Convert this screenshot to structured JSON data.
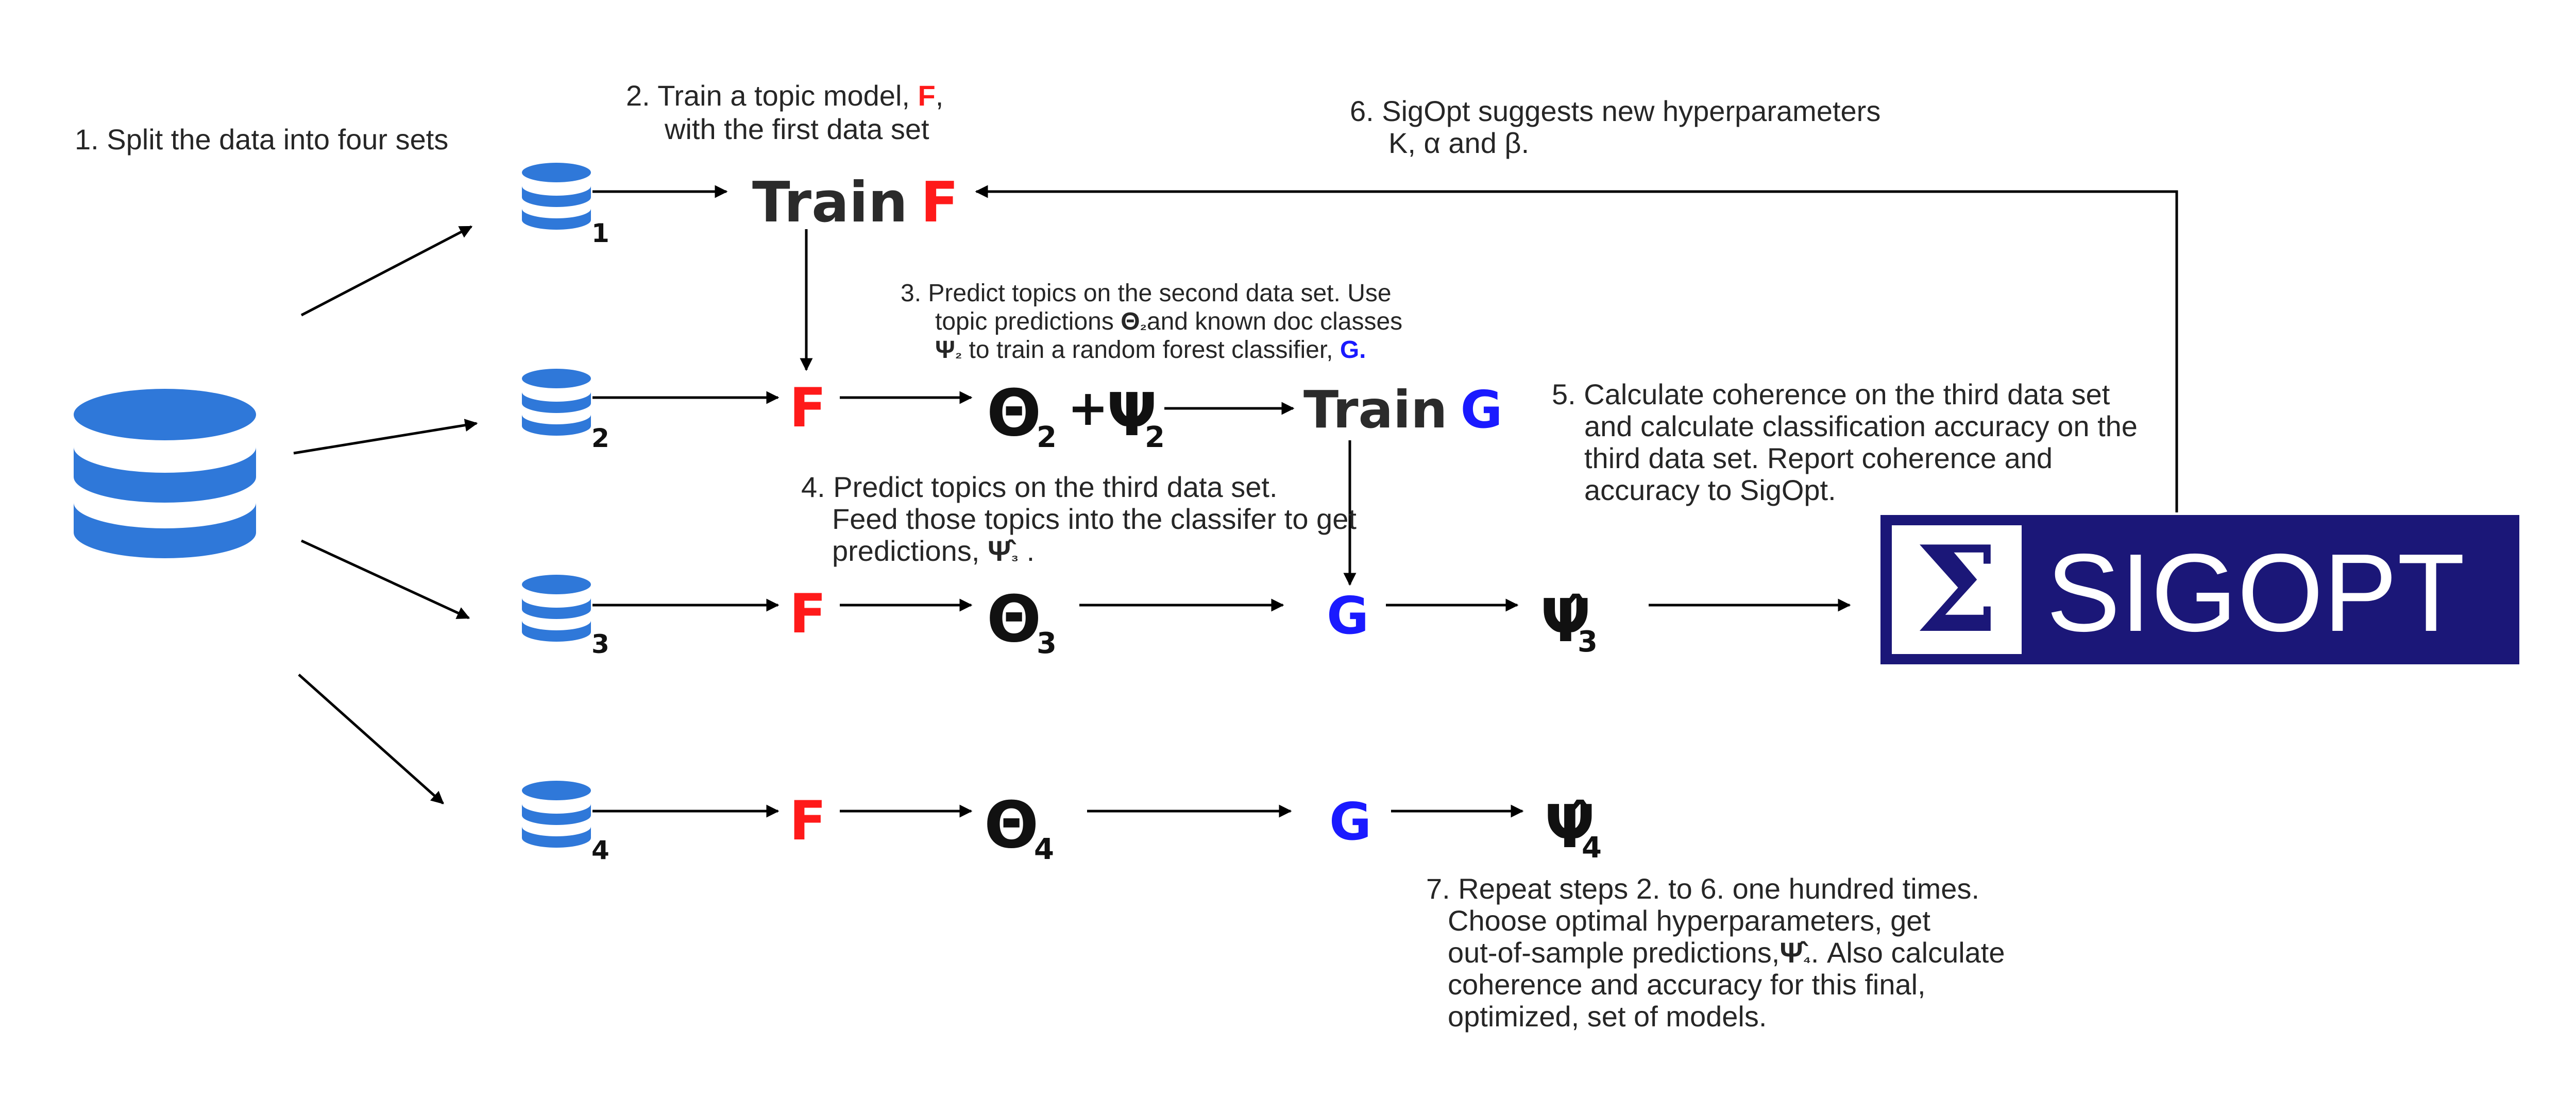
{
  "steps": {
    "s1": "1. Split the data into four sets",
    "s2": [
      "2. Train a topic model, ",
      "F",
      ",",
      "with the first data set"
    ],
    "s3": [
      "3. Predict topics on the second data set. Use",
      "topic predictions ",
      "Θ",
      "₂",
      "and known doc classes",
      "Ψ",
      "₂",
      " to train a random forest classifier, ",
      "G."
    ],
    "s4": [
      "4. Predict topics on the third data set.",
      "Feed those topics into the classifer to get",
      "predictions, ",
      "Ψ̂",
      "₃",
      " ."
    ],
    "s5": [
      "5. Calculate coherence on the third data set",
      "and calculate classification accuracy on the",
      "third data set. Report coherence and",
      "accuracy to SigOpt."
    ],
    "s6": [
      "6. SigOpt suggests new hyperparameters",
      "K, α and β."
    ],
    "s7": [
      "7. Repeat steps 2. to 6. one hundred times.",
      "Choose optimal hyperparameters, get",
      "out-of-sample predictions,",
      "Ψ̂",
      "₄",
      ". Also calculate",
      "coherence and accuracy for this final,",
      "optimized, set of models."
    ]
  },
  "nodes": {
    "train_word": "Train",
    "F": "F",
    "G": "G",
    "theta": "Θ",
    "psi": "Ψ",
    "psi_hat": "Ψ̂",
    "plus": "+",
    "sub1": "1",
    "sub2": "2",
    "sub3": "3",
    "sub4": "4"
  },
  "logo": {
    "sigma": "Σ",
    "text_a": "SIG",
    "text_b": "OPT"
  },
  "colors": {
    "database": "#2f78d9",
    "model_f": "#ff1a1a",
    "model_g": "#1a1aff",
    "logo_bg": "#1b1778",
    "text": "#262626",
    "arrow": "#000000"
  }
}
